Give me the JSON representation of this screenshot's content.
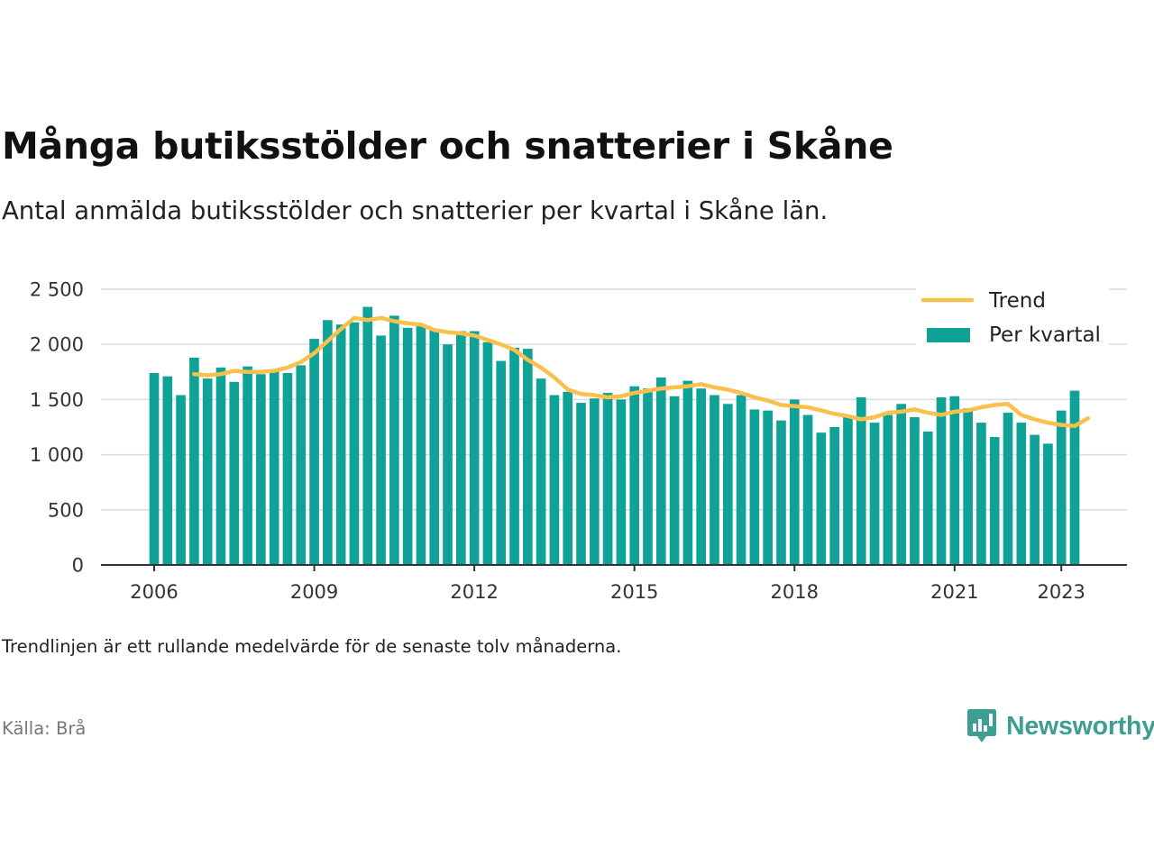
{
  "title": "Många butiksstölder och snatterier i Skåne",
  "subtitle": "Antal anmälda butiksstölder och snatterier per kvartal i Skåne län.",
  "note": "Trendlinjen är ett rullande medelvärde för de senaste tolv månaderna.",
  "source": "Källa: Brå",
  "brand": {
    "name": "Newsworthy",
    "icon": "newsworthy-logo-icon",
    "color": "#3d9e93"
  },
  "chart_data": {
    "type": "bar",
    "x_start": "2006 Q1",
    "x_end": "2023 Q1",
    "x_ticks": [
      "2006",
      "2009",
      "2012",
      "2015",
      "2018",
      "2021",
      "2023"
    ],
    "y_ticks": [
      "0",
      "500",
      "1 000",
      "1 500",
      "2 000",
      "2 500"
    ],
    "ylim": [
      0,
      2500
    ],
    "grid": true,
    "legend_position": "top-right",
    "colors": {
      "bars": "#0fa398",
      "trend": "#f9c14b"
    },
    "series": [
      {
        "name": "Per kvartal",
        "type": "bar",
        "values": [
          1740,
          1710,
          1540,
          1880,
          1690,
          1790,
          1660,
          1800,
          1730,
          1760,
          1740,
          1810,
          2050,
          2220,
          2180,
          2200,
          2340,
          2080,
          2260,
          2150,
          2170,
          2130,
          2000,
          2120,
          2120,
          2020,
          1850,
          1970,
          1960,
          1690,
          1540,
          1570,
          1470,
          1510,
          1560,
          1500,
          1620,
          1600,
          1700,
          1530,
          1670,
          1600,
          1540,
          1460,
          1540,
          1410,
          1400,
          1310,
          1500,
          1360,
          1200,
          1250,
          1340,
          1520,
          1290,
          1360,
          1460,
          1340,
          1210,
          1520,
          1530,
          1420,
          1290,
          1160,
          1380,
          1290,
          1180,
          1100,
          1400,
          1580
        ]
      },
      {
        "name": "Trend",
        "type": "line",
        "start_index": 3,
        "values": [
          1730,
          1720,
          1730,
          1760,
          1750,
          1750,
          1760,
          1790,
          1840,
          1920,
          2030,
          2140,
          2240,
          2220,
          2240,
          2210,
          2190,
          2180,
          2130,
          2110,
          2100,
          2080,
          2040,
          2000,
          1950,
          1860,
          1790,
          1700,
          1590,
          1550,
          1540,
          1520,
          1530,
          1560,
          1580,
          1600,
          1610,
          1620,
          1640,
          1610,
          1590,
          1560,
          1520,
          1490,
          1450,
          1440,
          1430,
          1400,
          1370,
          1350,
          1320,
          1340,
          1380,
          1390,
          1410,
          1380,
          1360,
          1390,
          1400,
          1430,
          1450,
          1460,
          1360,
          1320,
          1290,
          1270,
          1260,
          1330
        ]
      }
    ]
  }
}
